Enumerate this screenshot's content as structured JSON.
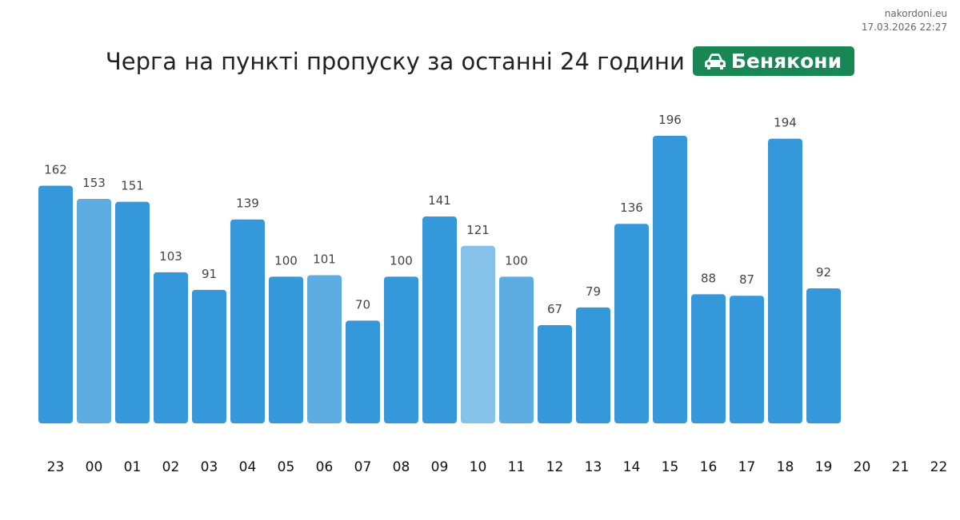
{
  "source": {
    "site": "nakordoni.eu",
    "timestamp": "17.03.2026 22:27"
  },
  "header": {
    "title": "Черга на пункті пропуску за останні 24 години",
    "checkpoint": "Бенякони",
    "icon": "car-icon"
  },
  "colors": {
    "bar": "#3498db",
    "bar_medium": "#5dade2",
    "bar_light": "#85c1e9",
    "badge": "#198754"
  },
  "chart_data": {
    "type": "bar",
    "title": "Черга на пункті пропуску за останні 24 години",
    "categories": [
      "23",
      "00",
      "01",
      "02",
      "03",
      "04",
      "05",
      "06",
      "07",
      "08",
      "09",
      "10",
      "11",
      "12",
      "13",
      "14",
      "15",
      "16",
      "17",
      "18",
      "19",
      "20",
      "21",
      "22"
    ],
    "values": [
      162,
      153,
      151,
      103,
      91,
      139,
      100,
      101,
      70,
      100,
      141,
      121,
      100,
      67,
      79,
      136,
      196,
      88,
      87,
      194,
      92,
      null,
      null,
      null
    ],
    "shade": [
      "dark",
      "medium",
      "dark",
      "dark",
      "dark",
      "dark",
      "dark",
      "medium",
      "dark",
      "dark",
      "dark",
      "light",
      "medium",
      "dark",
      "dark",
      "dark",
      "dark",
      "dark",
      "dark",
      "dark",
      "dark",
      null,
      null,
      null
    ],
    "ylim": [
      0,
      196
    ],
    "xlabel": "",
    "ylabel": "",
    "grid": false
  }
}
